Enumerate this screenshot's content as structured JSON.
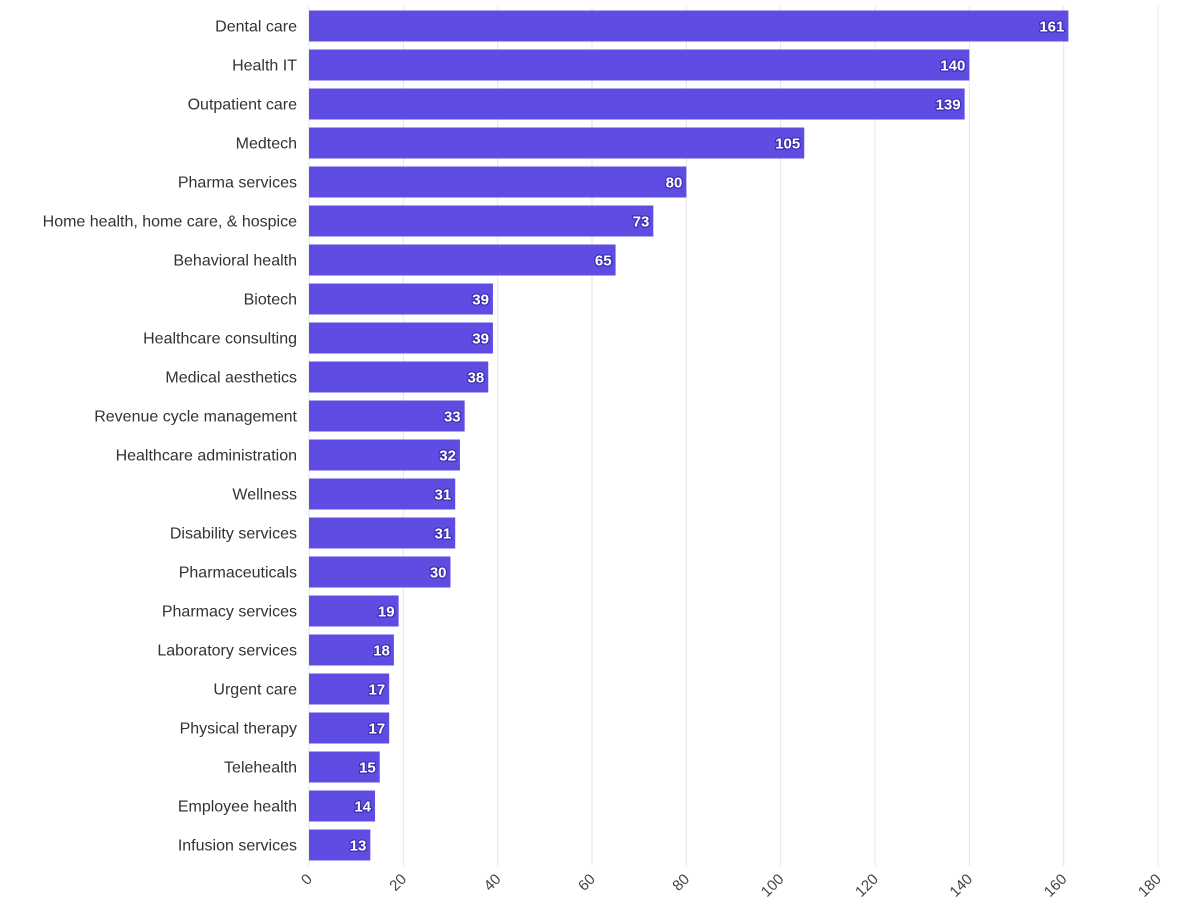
{
  "chart_data": {
    "type": "bar",
    "orientation": "horizontal",
    "categories": [
      "Dental care",
      "Health IT",
      "Outpatient care",
      "Medtech",
      "Pharma services",
      "Home health, home care, & hospice",
      "Behavioral health",
      "Biotech",
      "Healthcare consulting",
      "Medical aesthetics",
      "Revenue cycle management",
      "Healthcare administration",
      "Wellness",
      "Disability services",
      "Pharmaceuticals",
      "Pharmacy services",
      "Laboratory services",
      "Urgent care",
      "Physical therapy",
      "Telehealth",
      "Employee health",
      "Infusion services"
    ],
    "values": [
      161,
      140,
      139,
      105,
      80,
      73,
      65,
      39,
      39,
      38,
      33,
      32,
      31,
      31,
      30,
      19,
      18,
      17,
      17,
      15,
      14,
      13
    ],
    "xlim": [
      0,
      180
    ],
    "xticks": [
      "0",
      "20",
      "40",
      "60",
      "80",
      "100",
      "120",
      "140",
      "160",
      "180"
    ],
    "grid": "vertical",
    "bar_color": "#5f4de3",
    "legend": "none"
  }
}
